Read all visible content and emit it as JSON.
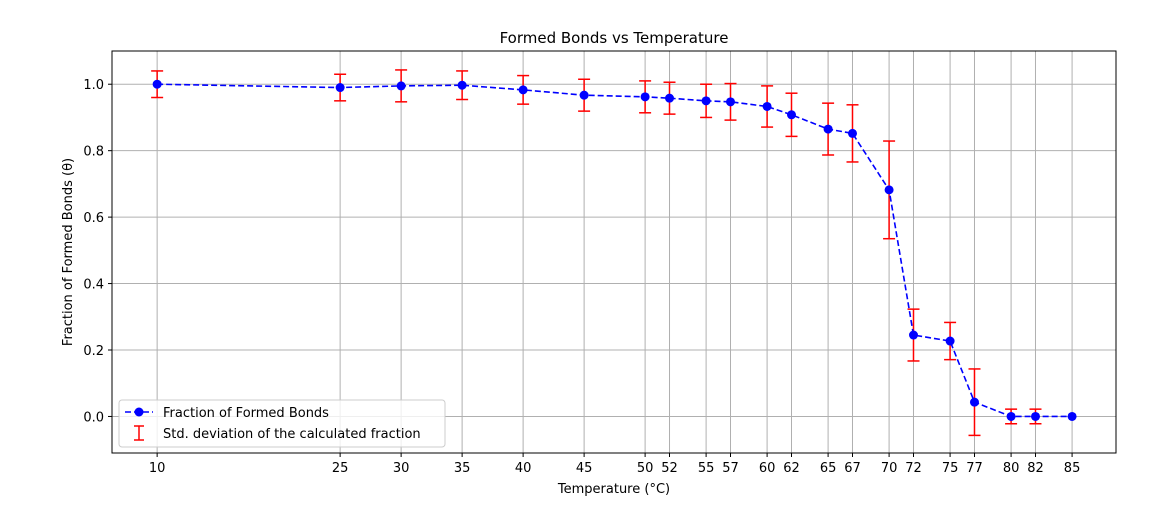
{
  "chart_data": {
    "type": "line",
    "title": "Formed Bonds vs Temperature",
    "xlabel": "Temperature (°C)",
    "ylabel": "Fraction of Formed Bonds (θ)",
    "x": [
      10,
      25,
      30,
      35,
      40,
      45,
      50,
      52,
      55,
      57,
      60,
      62,
      65,
      67,
      70,
      72,
      75,
      77,
      80,
      82,
      85
    ],
    "xticks": [
      10,
      25,
      30,
      35,
      40,
      45,
      50,
      52,
      55,
      57,
      60,
      62,
      65,
      67,
      70,
      72,
      75,
      77,
      80,
      82,
      85
    ],
    "xlim": [
      6.3,
      88.6
    ],
    "ylim": [
      -0.11,
      1.1
    ],
    "yticks": [
      "0.0",
      "0.2",
      "0.4",
      "0.6",
      "0.8",
      "1.0"
    ],
    "grid": true,
    "legend_position": "lower-left",
    "series": [
      {
        "name": "Fraction of Formed Bonds",
        "color": "#0000ff",
        "linestyle": "dashed",
        "marker": "circle",
        "values": [
          1.0,
          0.99,
          0.995,
          0.997,
          0.983,
          0.967,
          0.962,
          0.958,
          0.95,
          0.947,
          0.933,
          0.908,
          0.865,
          0.852,
          0.682,
          0.245,
          0.227,
          0.043,
          0.0,
          0.0,
          0.0
        ],
        "error": [
          0.04,
          0.04,
          0.048,
          0.043,
          0.043,
          0.048,
          0.048,
          0.048,
          0.05,
          0.055,
          0.062,
          0.065,
          0.078,
          0.086,
          0.147,
          0.078,
          0.056,
          0.1,
          0.022,
          0.022,
          0.0
        ]
      }
    ],
    "error_series": {
      "name": "Std. deviation of the calculated fraction",
      "color": "#ff0000"
    }
  }
}
